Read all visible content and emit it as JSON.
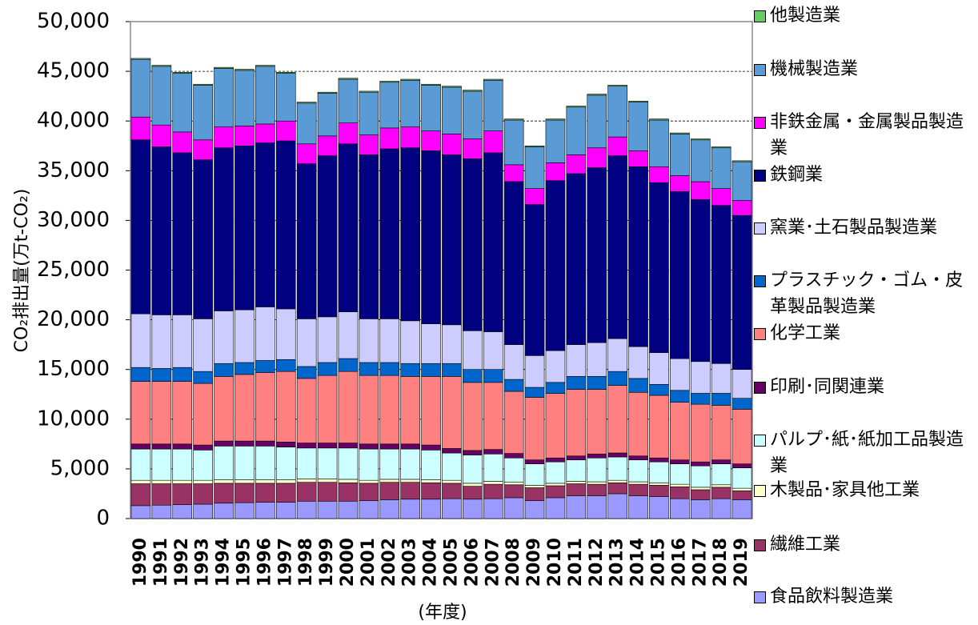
{
  "chart_data": {
    "type": "stacked_bar",
    "y_label": "CO₂排出量(万t-CO₂)",
    "x_label": "(年度)",
    "categories": [
      "1990",
      "1991",
      "1992",
      "1993",
      "1994",
      "1995",
      "1996",
      "1997",
      "1998",
      "1999",
      "2000",
      "2001",
      "2002",
      "2003",
      "2004",
      "2005",
      "2006",
      "2007",
      "2008",
      "2009",
      "2010",
      "2011",
      "2012",
      "2013",
      "2014",
      "2015",
      "2016",
      "2017",
      "2018",
      "2019"
    ],
    "ylim": [
      0,
      50000
    ],
    "yticks": [
      0,
      {
        "value": 5000,
        "label": "5,000"
      },
      {
        "value": 10000,
        "label": "10,000"
      },
      {
        "value": 15000,
        "label": "15,000"
      },
      {
        "value": 20000,
        "label": "20,000"
      },
      {
        "value": 25000,
        "label": "25,000"
      },
      {
        "value": 30000,
        "label": "30,000"
      },
      {
        "value": 35000,
        "label": "35,000"
      },
      {
        "value": 40000,
        "label": "40,000"
      },
      {
        "value": 45000,
        "label": "45,000"
      },
      {
        "value": 50000,
        "label": "50,000"
      }
    ],
    "grid": true,
    "series": [
      {
        "name": "食品飲料製造業",
        "color": "#9999ff",
        "values": [
          1300,
          1350,
          1400,
          1450,
          1550,
          1600,
          1650,
          1650,
          1750,
          1750,
          1750,
          1800,
          1900,
          1950,
          1950,
          2000,
          1950,
          2000,
          2100,
          1800,
          2100,
          2300,
          2300,
          2500,
          2300,
          2200,
          2000,
          1900,
          2000,
          1900
        ]
      },
      {
        "name": "繊維工業",
        "color": "#993366",
        "values": [
          2200,
          2150,
          2100,
          2050,
          2000,
          1950,
          1900,
          1900,
          1900,
          1900,
          1850,
          1750,
          1750,
          1700,
          1650,
          1550,
          1300,
          1450,
          1300,
          1300,
          1200,
          1200,
          1150,
          1100,
          1150,
          1150,
          1200,
          1000,
          1150,
          900
        ]
      },
      {
        "name": "木製品･家具他工業",
        "color": "#ffffcc",
        "values": [
          350,
          350,
          350,
          350,
          350,
          350,
          350,
          350,
          350,
          350,
          350,
          300,
          300,
          300,
          300,
          300,
          300,
          300,
          250,
          250,
          250,
          250,
          250,
          250,
          250,
          250,
          250,
          250,
          250,
          250
        ]
      },
      {
        "name": "パルプ･紙･紙加工品製造業",
        "color": "#ccffff",
        "values": [
          3150,
          3150,
          3150,
          3050,
          3400,
          3400,
          3400,
          3300,
          3100,
          3100,
          3150,
          3150,
          3050,
          3050,
          3000,
          2750,
          2850,
          2750,
          2450,
          2150,
          2150,
          2150,
          2400,
          2350,
          2200,
          2100,
          2050,
          2150,
          2100,
          2050
        ]
      },
      {
        "name": "印刷･同関連業",
        "color": "#660066",
        "values": [
          500,
          500,
          500,
          500,
          500,
          500,
          500,
          500,
          500,
          500,
          500,
          500,
          500,
          500,
          500,
          450,
          450,
          450,
          450,
          400,
          400,
          400,
          400,
          400,
          400,
          400,
          400,
          400,
          400,
          400
        ]
      },
      {
        "name": "化学工業",
        "color": "#ff8080",
        "values": [
          6300,
          6300,
          6300,
          6200,
          6500,
          6700,
          6900,
          7100,
          6500,
          6800,
          7200,
          6900,
          6900,
          6800,
          6900,
          7250,
          6850,
          6750,
          6250,
          6300,
          6500,
          6700,
          6500,
          6800,
          6400,
          6300,
          5800,
          5800,
          5500,
          5500
        ]
      },
      {
        "name": "プラスチック・ゴム・皮革製品製造業",
        "color": "#0066cc",
        "values": [
          1400,
          1300,
          1400,
          1200,
          1300,
          1200,
          1200,
          1200,
          1200,
          1300,
          1300,
          1300,
          1300,
          1300,
          1300,
          1300,
          1300,
          1300,
          1200,
          1000,
          1100,
          1300,
          1300,
          1400,
          1400,
          1100,
          1200,
          1100,
          1200,
          1100
        ]
      },
      {
        "name": "窯業･土石製品製造業",
        "color": "#ccccff",
        "values": [
          5400,
          5400,
          5300,
          5300,
          5300,
          5300,
          5400,
          5100,
          4800,
          4600,
          4700,
          4400,
          4400,
          4300,
          4000,
          3900,
          3900,
          3800,
          3500,
          3200,
          3200,
          3200,
          3400,
          3300,
          3200,
          3200,
          3200,
          3200,
          3000,
          2900
        ]
      },
      {
        "name": "鉄鋼業",
        "color": "#000080",
        "values": [
          17500,
          16900,
          16300,
          16000,
          16400,
          16500,
          16500,
          16900,
          15600,
          16200,
          16900,
          16500,
          17100,
          17400,
          17400,
          17100,
          17300,
          18000,
          16400,
          15200,
          17100,
          17200,
          17600,
          18400,
          18100,
          17100,
          16800,
          16300,
          15900,
          15500
        ]
      },
      {
        "name": "非鉄金属・金属製品製造業",
        "color": "#ff00ff",
        "values": [
          2300,
          2200,
          2100,
          2000,
          2100,
          2000,
          1900,
          2000,
          2000,
          2000,
          2100,
          2000,
          2100,
          2100,
          2000,
          2100,
          2000,
          2200,
          1700,
          1600,
          1800,
          1900,
          2000,
          1900,
          1600,
          1600,
          1600,
          1800,
          1700,
          1500
        ]
      },
      {
        "name": "機械製造業",
        "color": "#5b9bd5",
        "values": [
          5800,
          5900,
          5900,
          5500,
          5900,
          5600,
          5800,
          4800,
          4100,
          4300,
          4400,
          4300,
          4600,
          4700,
          4600,
          4700,
          4800,
          5100,
          4500,
          4200,
          4300,
          4800,
          5300,
          5100,
          4900,
          4700,
          4200,
          4200,
          4100,
          3900
        ]
      },
      {
        "name": "他製造業",
        "color": "#66cc66",
        "values": [
          100,
          100,
          100,
          100,
          100,
          100,
          100,
          100,
          100,
          100,
          100,
          100,
          100,
          100,
          100,
          100,
          100,
          100,
          100,
          100,
          100,
          100,
          100,
          100,
          100,
          100,
          100,
          100,
          100,
          100
        ]
      }
    ]
  }
}
